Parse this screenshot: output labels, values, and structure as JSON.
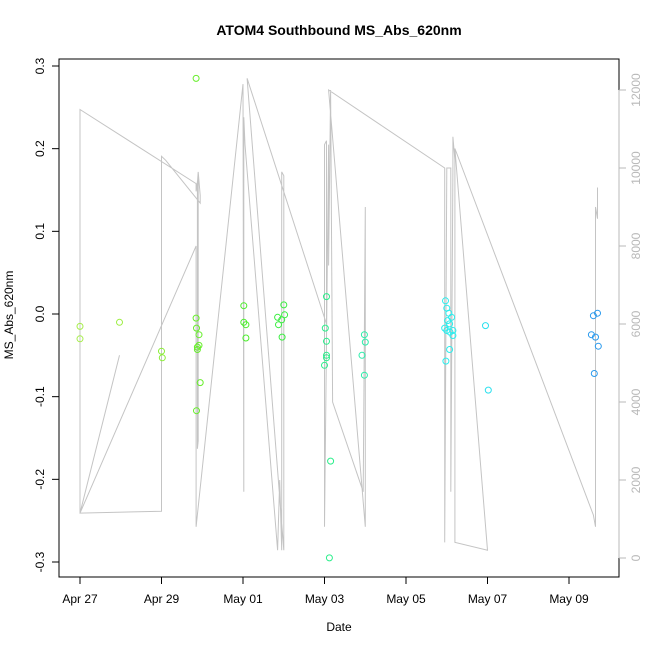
{
  "chart_data": {
    "type": "scatter",
    "title": "ATOM4 Southbound MS_Abs_620nm",
    "xlabel": "Date",
    "ylabel": "MS_Abs_620nm",
    "x_ticks": [
      {
        "value": 0,
        "label": "Apr 27"
      },
      {
        "value": 2,
        "label": "Apr 29"
      },
      {
        "value": 4,
        "label": "May 01"
      },
      {
        "value": 6,
        "label": "May 03"
      },
      {
        "value": 8,
        "label": "May 05"
      },
      {
        "value": 10,
        "label": "May 07"
      },
      {
        "value": 12,
        "label": "May 09"
      }
    ],
    "y_ticks": [
      -0.3,
      -0.2,
      -0.1,
      0.0,
      0.1,
      0.2,
      0.3
    ],
    "y_tick_labels": [
      "-0.3",
      "-0.2",
      "-0.1",
      "0.0",
      "0.1",
      "0.2",
      "0.3"
    ],
    "ylim": [
      -0.3,
      0.3
    ],
    "xlim": [
      -0.5,
      13.0
    ],
    "y2_ticks": [
      0,
      2000,
      4000,
      6000,
      8000,
      10000,
      12000
    ],
    "y2_tick_labels": [
      "0",
      "2000",
      "4000",
      "6000",
      "8000",
      "10000",
      "12000"
    ],
    "y2lim": [
      0,
      12500
    ],
    "points": [
      {
        "x": 0.0,
        "y": -0.015,
        "color": "#a6ee4a"
      },
      {
        "x": 0.0,
        "y": -0.03,
        "color": "#a6ee4a"
      },
      {
        "x": 0.97,
        "y": -0.01,
        "color": "#9cee40"
      },
      {
        "x": 2.0,
        "y": -0.045,
        "color": "#8aee36"
      },
      {
        "x": 2.02,
        "y": -0.053,
        "color": "#8aee36"
      },
      {
        "x": 2.85,
        "y": 0.285,
        "color": "#66ee2a"
      },
      {
        "x": 2.85,
        "y": -0.005,
        "color": "#66ee2a"
      },
      {
        "x": 2.86,
        "y": -0.017,
        "color": "#66ee2a"
      },
      {
        "x": 2.88,
        "y": -0.04,
        "color": "#66ee2a"
      },
      {
        "x": 2.88,
        "y": -0.043,
        "color": "#66ee2a"
      },
      {
        "x": 2.92,
        "y": -0.025,
        "color": "#66ee2a"
      },
      {
        "x": 2.92,
        "y": -0.038,
        "color": "#66ee2a"
      },
      {
        "x": 2.95,
        "y": -0.083,
        "color": "#66ee2a"
      },
      {
        "x": 2.86,
        "y": -0.117,
        "color": "#66ee2a"
      },
      {
        "x": 4.02,
        "y": 0.01,
        "color": "#4aee2a"
      },
      {
        "x": 4.02,
        "y": -0.01,
        "color": "#4aee2a"
      },
      {
        "x": 4.07,
        "y": -0.013,
        "color": "#4aee2a"
      },
      {
        "x": 4.07,
        "y": -0.029,
        "color": "#4aee2a"
      },
      {
        "x": 4.85,
        "y": -0.004,
        "color": "#3aee40"
      },
      {
        "x": 4.87,
        "y": -0.013,
        "color": "#3aee40"
      },
      {
        "x": 4.95,
        "y": -0.007,
        "color": "#3aee40"
      },
      {
        "x": 4.96,
        "y": -0.028,
        "color": "#3aee40"
      },
      {
        "x": 5.0,
        "y": 0.011,
        "color": "#3aee40"
      },
      {
        "x": 5.02,
        "y": -0.001,
        "color": "#3aee40"
      },
      {
        "x": 6.05,
        "y": 0.021,
        "color": "#2aee8a"
      },
      {
        "x": 6.02,
        "y": -0.017,
        "color": "#2aee8a"
      },
      {
        "x": 6.05,
        "y": -0.033,
        "color": "#2aee8a"
      },
      {
        "x": 6.05,
        "y": -0.05,
        "color": "#2aee8a"
      },
      {
        "x": 6.05,
        "y": -0.053,
        "color": "#2aee8a"
      },
      {
        "x": 6.0,
        "y": -0.062,
        "color": "#2aee8a"
      },
      {
        "x": 6.15,
        "y": -0.178,
        "color": "#2aee8a"
      },
      {
        "x": 6.12,
        "y": -0.295,
        "color": "#2aee8a"
      },
      {
        "x": 6.92,
        "y": -0.05,
        "color": "#2aeeaa"
      },
      {
        "x": 6.98,
        "y": -0.025,
        "color": "#2aeeaa"
      },
      {
        "x": 7.0,
        "y": -0.034,
        "color": "#2aeeaa"
      },
      {
        "x": 6.98,
        "y": -0.074,
        "color": "#2aeeaa"
      },
      {
        "x": 8.97,
        "y": 0.016,
        "color": "#2aeeee"
      },
      {
        "x": 9.0,
        "y": 0.007,
        "color": "#2aeeee"
      },
      {
        "x": 9.05,
        "y": 0.001,
        "color": "#2aeeee"
      },
      {
        "x": 9.12,
        "y": -0.004,
        "color": "#2aeeee"
      },
      {
        "x": 9.02,
        "y": -0.008,
        "color": "#2aeeee"
      },
      {
        "x": 9.07,
        "y": -0.012,
        "color": "#2aeeee"
      },
      {
        "x": 8.95,
        "y": -0.017,
        "color": "#2aeeee"
      },
      {
        "x": 9.0,
        "y": -0.02,
        "color": "#2aeeee"
      },
      {
        "x": 9.08,
        "y": -0.022,
        "color": "#2aeeee"
      },
      {
        "x": 9.15,
        "y": -0.02,
        "color": "#2aeeee"
      },
      {
        "x": 9.15,
        "y": -0.026,
        "color": "#2aeeee"
      },
      {
        "x": 9.07,
        "y": -0.043,
        "color": "#2aeeee"
      },
      {
        "x": 8.98,
        "y": -0.057,
        "color": "#2aeeee"
      },
      {
        "x": 9.95,
        "y": -0.014,
        "color": "#2ae0ee"
      },
      {
        "x": 10.02,
        "y": -0.092,
        "color": "#2ae0ee"
      },
      {
        "x": 12.6,
        "y": -0.002,
        "color": "#2a9aee"
      },
      {
        "x": 12.7,
        "y": 0.001,
        "color": "#2a9aee"
      },
      {
        "x": 12.55,
        "y": -0.025,
        "color": "#2a9aee"
      },
      {
        "x": 12.65,
        "y": -0.028,
        "color": "#2a9aee"
      },
      {
        "x": 12.72,
        "y": -0.039,
        "color": "#2a9aee"
      },
      {
        "x": 12.62,
        "y": -0.072,
        "color": "#2a9aee"
      }
    ],
    "trace_line": {
      "color": "#c4c4c4",
      "axis": "y2",
      "points": [
        [
          0.0,
          1150
        ],
        [
          0.0,
          11500
        ],
        [
          2.85,
          9600
        ],
        [
          2.85,
          9400
        ],
        [
          2.9,
          9800
        ],
        [
          2.9,
          3000
        ],
        [
          2.88,
          2800
        ],
        [
          2.88,
          9600
        ],
        [
          2.9,
          9900
        ],
        [
          2.95,
          9300
        ],
        [
          2.95,
          9100
        ],
        [
          2.1,
          10200
        ],
        [
          2.0,
          10300
        ],
        [
          2.0,
          1200
        ],
        [
          0.0,
          1150
        ],
        [
          0.97,
          5200
        ],
        [
          0.0,
          1150
        ],
        [
          2.85,
          8000
        ],
        [
          2.85,
          800
        ],
        [
          4.0,
          12150
        ],
        [
          4.02,
          1700
        ],
        [
          4.02,
          11300
        ],
        [
          4.05,
          10600
        ],
        [
          4.85,
          200
        ],
        [
          4.9,
          2000
        ],
        [
          4.95,
          200
        ],
        [
          4.95,
          9900
        ],
        [
          5.0,
          9800
        ],
        [
          5.0,
          200
        ],
        [
          4.1,
          12300
        ],
        [
          6.05,
          6000
        ],
        [
          6.05,
          10700
        ],
        [
          6.0,
          10600
        ],
        [
          6.0,
          800
        ],
        [
          6.1,
          10600
        ],
        [
          6.1,
          7500
        ],
        [
          6.15,
          12000
        ],
        [
          6.2,
          4000
        ],
        [
          6.95,
          1700
        ],
        [
          7.0,
          9000
        ],
        [
          7.0,
          800
        ],
        [
          6.1,
          12000
        ],
        [
          8.95,
          10000
        ],
        [
          8.95,
          400
        ],
        [
          9.0,
          10000
        ],
        [
          9.1,
          10000
        ],
        [
          9.1,
          1700
        ],
        [
          9.15,
          9900
        ],
        [
          9.15,
          10800
        ],
        [
          9.2,
          10200
        ],
        [
          9.2,
          400
        ],
        [
          10.0,
          200
        ],
        [
          9.2,
          10500
        ],
        [
          12.6,
          1100
        ],
        [
          12.65,
          800
        ],
        [
          12.65,
          9000
        ],
        [
          12.7,
          8700
        ],
        [
          12.7,
          9500
        ]
      ]
    }
  }
}
